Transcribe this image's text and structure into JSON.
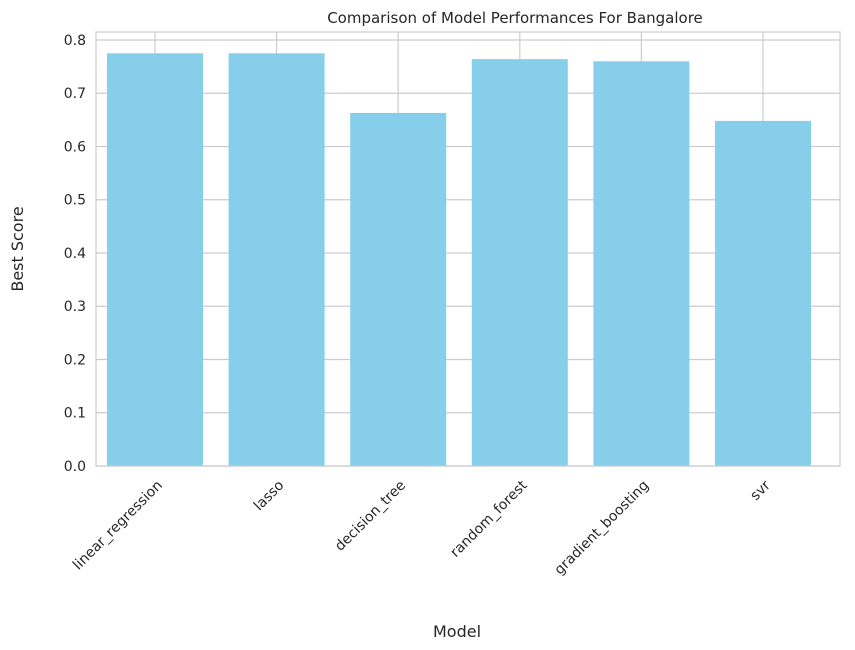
{
  "chart_data": {
    "type": "bar",
    "title": "Comparison of Model Performances For Bangalore",
    "xlabel": "Model",
    "ylabel": "Best Score",
    "categories": [
      "linear_regression",
      "lasso",
      "decision_tree",
      "random_forest",
      "gradient_boosting",
      "svr"
    ],
    "values": [
      0.775,
      0.775,
      0.663,
      0.764,
      0.76,
      0.648
    ],
    "ylim": [
      0,
      0.815
    ],
    "yticks": [
      0.0,
      0.1,
      0.2,
      0.3,
      0.4,
      0.5,
      0.6,
      0.7,
      0.8
    ],
    "ytick_labels": [
      "0.0",
      "0.1",
      "0.2",
      "0.3",
      "0.4",
      "0.5",
      "0.6",
      "0.7",
      "0.8"
    ],
    "grid": true,
    "bar_color": "#87CEEB",
    "grid_color": "#cccccc"
  }
}
